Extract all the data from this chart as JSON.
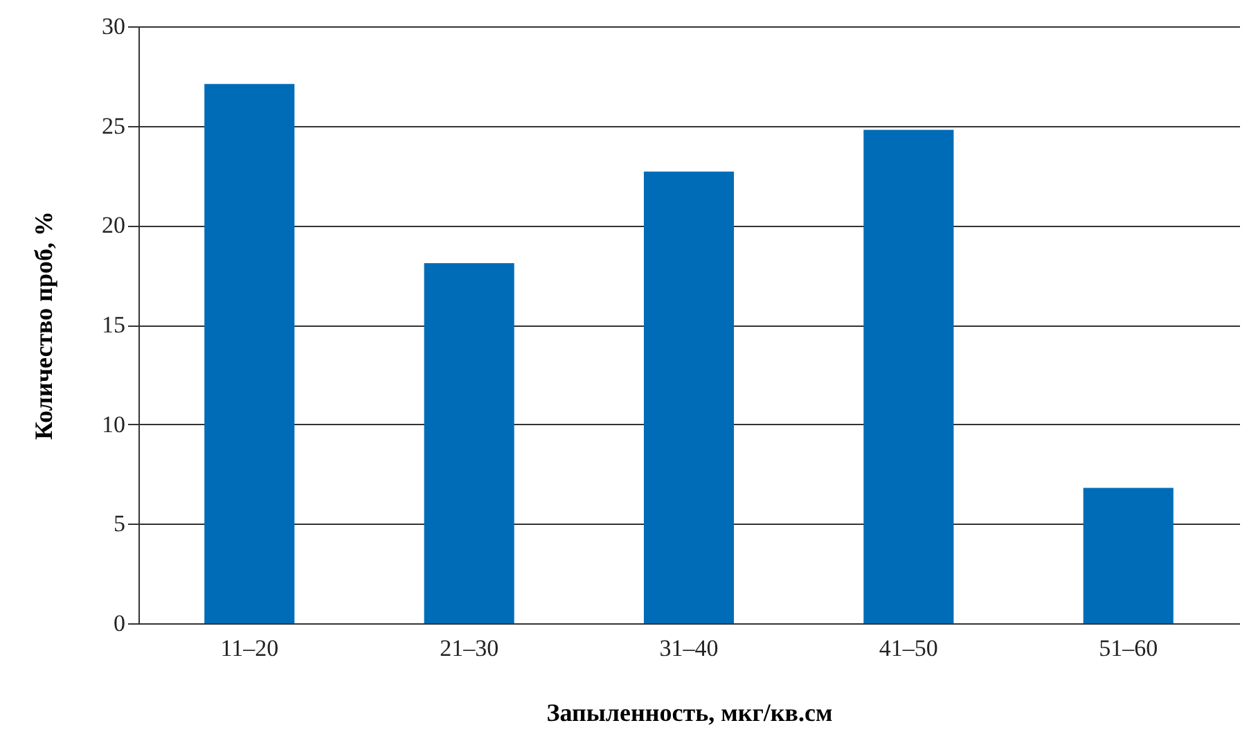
{
  "chart_data": {
    "type": "bar",
    "xlabel": "Запыленность, мкг/кв.см",
    "ylabel": "Количество проб, %",
    "categories": [
      "11–20",
      "21–30",
      "31–40",
      "41–50",
      "51–60"
    ],
    "values": [
      27.1,
      18.1,
      22.7,
      24.8,
      6.8
    ],
    "color": "#006cb7",
    "ylim": [
      0,
      30
    ],
    "yticks": [
      0,
      5,
      10,
      15,
      20,
      25,
      30
    ],
    "grid": "y"
  }
}
